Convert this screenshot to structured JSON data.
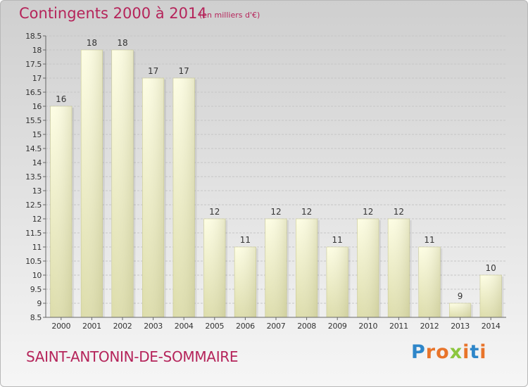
{
  "header": {
    "title": "Contingents 2000 à 2014",
    "unit": "(en milliers d'€)"
  },
  "footer": {
    "place": "SAINT-ANTONIN-DE-SOMMAIRE"
  },
  "logo": {
    "text": "Proxiti",
    "letters": [
      {
        "char": "P",
        "color": "#2e86c9"
      },
      {
        "char": "r",
        "color": "#e8742a"
      },
      {
        "char": "o",
        "color": "#e8742a"
      },
      {
        "char": "x",
        "color": "#8cc63e"
      },
      {
        "char": "i",
        "color": "#e8742a"
      },
      {
        "char": "t",
        "color": "#2e86c9"
      },
      {
        "char": "i",
        "color": "#e8742a"
      }
    ]
  },
  "chart_data": {
    "type": "bar",
    "title": "Contingents 2000 à 2014",
    "categories": [
      "2000",
      "2001",
      "2002",
      "2003",
      "2004",
      "2005",
      "2006",
      "2007",
      "2008",
      "2009",
      "2010",
      "2011",
      "2012",
      "2013",
      "2014"
    ],
    "values": [
      16,
      18,
      18,
      17,
      17,
      12,
      11,
      12,
      12,
      11,
      12,
      12,
      11,
      9,
      10
    ],
    "ylim": [
      8.5,
      18.5
    ],
    "yticks": [
      "8.5",
      "9",
      "9.5",
      "10",
      "10.5",
      "11",
      "11.5",
      "12",
      "12.5",
      "13",
      "13.5",
      "14",
      "14.5",
      "15",
      "15.5",
      "16",
      "16.5",
      "17",
      "17.5",
      "18",
      "18.5"
    ],
    "grid": true,
    "colors": {
      "bar_top": "#fdfde3",
      "bar_bottom": "#dcdca9",
      "grid": "#c6c6c6",
      "axis_text": "#333333"
    }
  }
}
